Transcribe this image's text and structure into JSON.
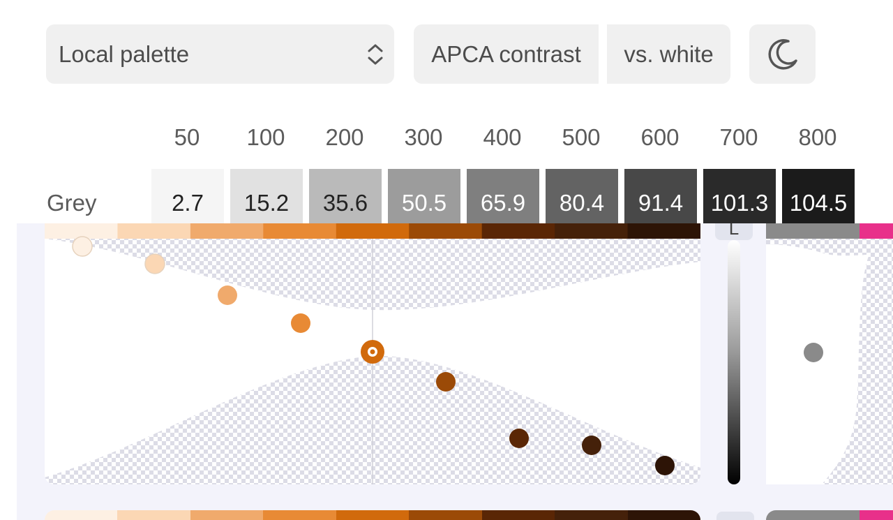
{
  "toolbar": {
    "palette_select": {
      "value": "Local palette",
      "icon": "chevron-up-down-icon"
    },
    "contrast_mode": "APCA contrast",
    "contrast_target": "vs. white",
    "theme_icon": "moon-icon"
  },
  "steps": [
    "50",
    "100",
    "200",
    "300",
    "400",
    "500",
    "600",
    "700",
    "800"
  ],
  "grey_row": {
    "label": "Grey",
    "swatches": [
      {
        "value": "2.7",
        "color": "#f5f5f5",
        "text_color": "#222222"
      },
      {
        "value": "15.2",
        "color": "#e1e1e1",
        "text_color": "#222222"
      },
      {
        "value": "35.6",
        "color": "#bababa",
        "text_color": "#222222"
      },
      {
        "value": "50.5",
        "color": "#9c9c9c",
        "text_color": "#ffffff"
      },
      {
        "value": "65.9",
        "color": "#7f7f7f",
        "text_color": "#ffffff"
      },
      {
        "value": "80.4",
        "color": "#636363",
        "text_color": "#ffffff"
      },
      {
        "value": "91.4",
        "color": "#484848",
        "text_color": "#ffffff"
      },
      {
        "value": "101.3",
        "color": "#2a2a2a",
        "text_color": "#ffffff"
      },
      {
        "value": "104.5",
        "color": "#1b1b1b",
        "text_color": "#ffffff"
      }
    ]
  },
  "orange_strip": [
    "#fdf0e3",
    "#fbd7b4",
    "#f0aa6c",
    "#e88a35",
    "#d16a0c",
    "#9b4a07",
    "#5a2605",
    "#45210a",
    "#2d1406"
  ],
  "curve_points": [
    {
      "color": "#fdf0e3"
    },
    {
      "color": "#fbd7b4"
    },
    {
      "color": "#f0aa6c"
    },
    {
      "color": "#e88a35"
    },
    {
      "color": "#d16a0c",
      "selected": true
    },
    {
      "color": "#9b4a07"
    },
    {
      "color": "#5a2605"
    },
    {
      "color": "#45210a"
    },
    {
      "color": "#2d1406"
    }
  ],
  "lightness_axis": {
    "label": "L"
  },
  "side_panel": {
    "grey_point_color": "#8a8a8a",
    "strip_colors": [
      "#8a8a8a",
      "#e8308a"
    ]
  },
  "accent": "#d16a0c"
}
